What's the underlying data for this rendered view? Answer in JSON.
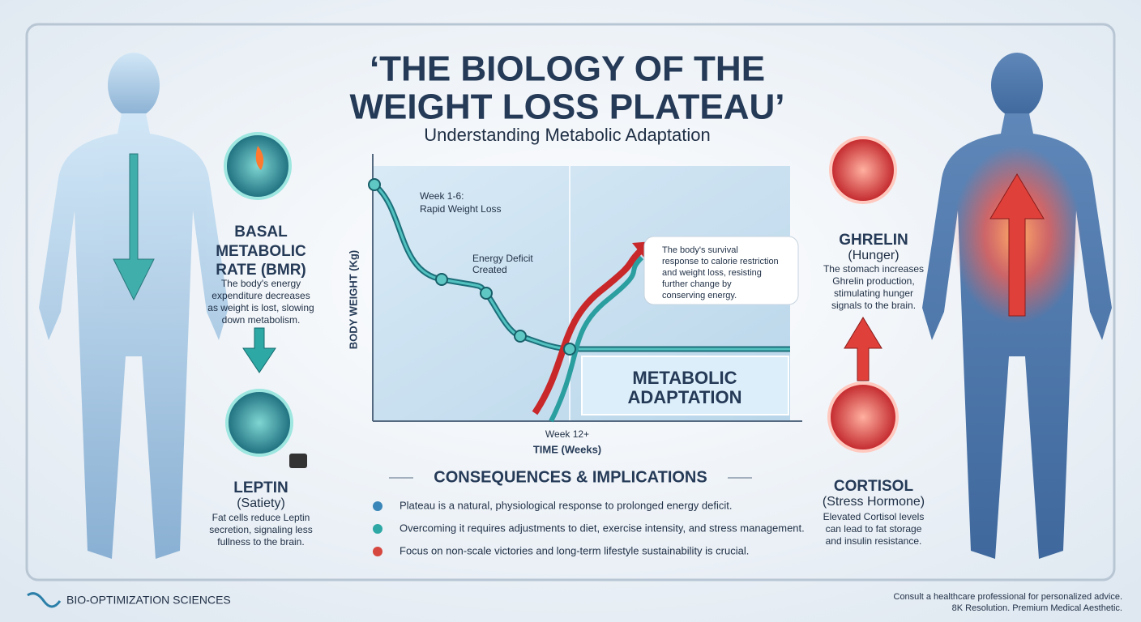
{
  "title_lines": [
    "‘THE BIOLOGY OF THE",
    "WEIGHT LOSS PLATEAU’"
  ],
  "subtitle": "Understanding Metabolic Adaptation",
  "left": {
    "bmr": {
      "title_lines": [
        "BASAL",
        "METABOLIC",
        "RATE (BMR)"
      ],
      "text_lines": [
        "The body's energy",
        "expenditure decreases",
        "as weight is lost, slowing",
        "down metabolism."
      ]
    },
    "leptin": {
      "title_lines": [
        "LEPTIN",
        "(Satiety)"
      ],
      "text_lines": [
        "Fat cells reduce Leptin",
        "secretion, signaling less",
        "fullness to the brain."
      ]
    }
  },
  "right": {
    "ghrelin": {
      "title_lines": [
        "GHRELIN",
        "(Hunger)"
      ],
      "text_lines": [
        "The stomach increases",
        "Ghrelin production,",
        "stimulating hunger",
        "signals to the brain."
      ]
    },
    "cortisol": {
      "title_lines": [
        "CORTISOL",
        "(Stress Hormone)"
      ],
      "text_lines": [
        "Elevated Cortisol levels",
        "can lead to fat storage",
        "and insulin resistance."
      ]
    }
  },
  "graph": {
    "y_label": "BODY WEIGHT (Kg)",
    "x_label": "TIME (Weeks)",
    "x_marker": "Week 12+",
    "phase1_lines": [
      "Week 1-6:",
      "Rapid Weight Loss"
    ],
    "phase2_lines": [
      "Energy Deficit",
      "Created"
    ],
    "callout_lines": [
      "The body's survival",
      "response to calorie restriction",
      "and weight loss, resisting",
      "further change by",
      "conserving energy."
    ],
    "box_lines": [
      "METABOLIC",
      "ADAPTATION"
    ]
  },
  "consequences": {
    "title": "CONSEQUENCES & IMPLICATIONS",
    "items": [
      "Plateau is a natural, physiological response to prolonged energy deficit.",
      "Overcoming it requires adjustments to diet, exercise intensity, and stress management.",
      "Focus on non-scale victories and long-term lifestyle sustainability is crucial."
    ]
  },
  "footer": {
    "brand": "BIO-OPTIMIZATION SCIENCES",
    "notes": [
      "Consult a healthcare professional for personalized advice.",
      "8K Resolution. Premium Medical Aesthetic."
    ]
  }
}
